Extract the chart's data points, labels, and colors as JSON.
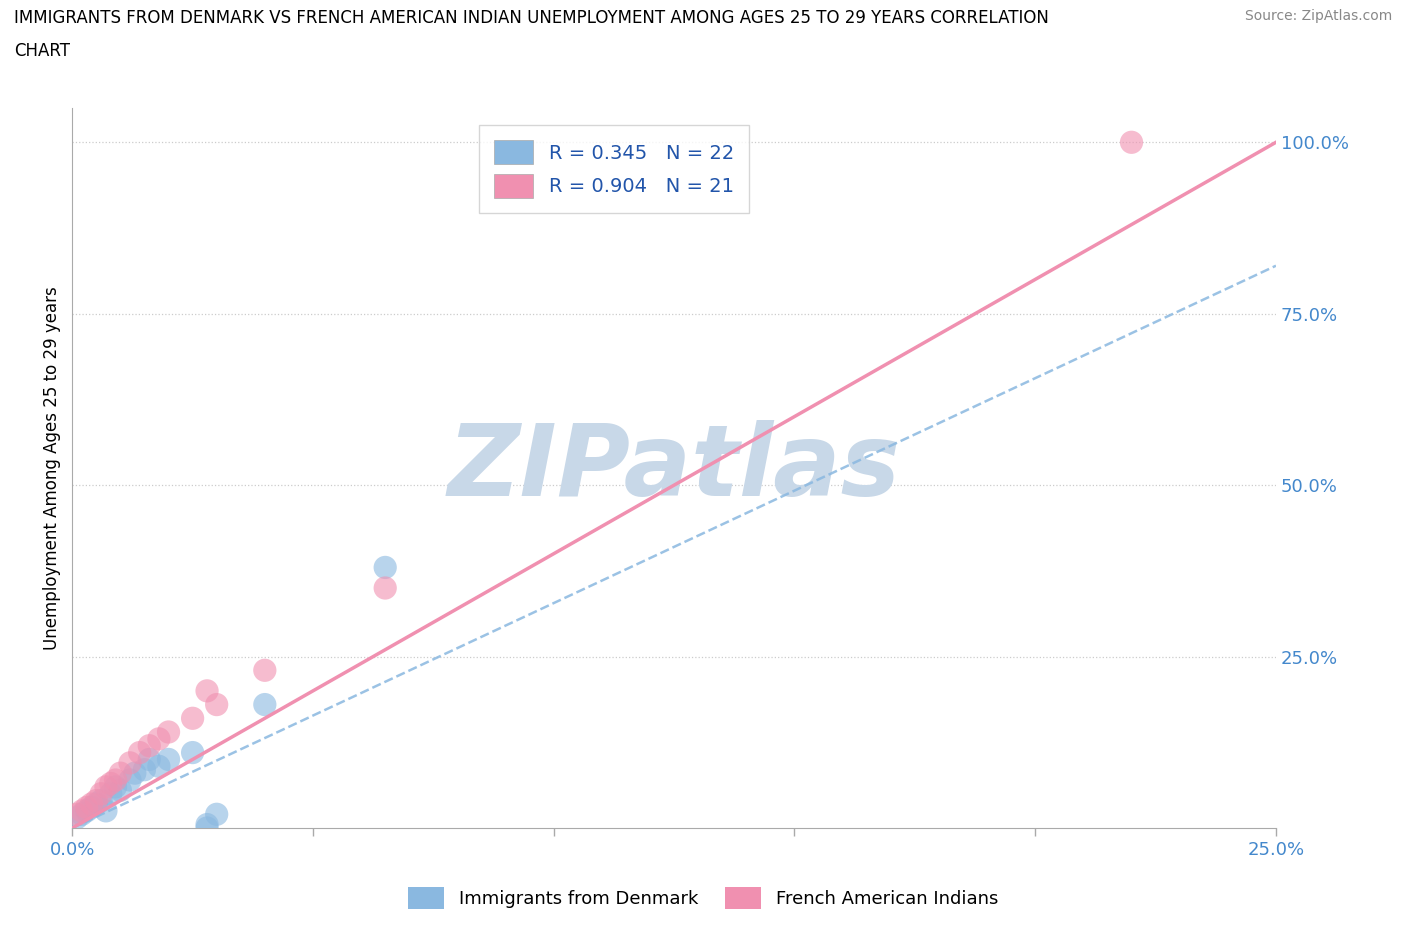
{
  "title_line1": "IMMIGRANTS FROM DENMARK VS FRENCH AMERICAN INDIAN UNEMPLOYMENT AMONG AGES 25 TO 29 YEARS CORRELATION",
  "title_line2": "CHART",
  "source": "Source: ZipAtlas.com",
  "ylabel": "Unemployment Among Ages 25 to 29 years",
  "xlim": [
    0.0,
    0.25
  ],
  "ylim": [
    0.0,
    1.05
  ],
  "grid_color": "#cccccc",
  "watermark": "ZIPatlas",
  "watermark_color": "#c8d8e8",
  "blue_color": "#8ab8e0",
  "pink_color": "#f090b0",
  "blue_R": 0.345,
  "blue_N": 22,
  "pink_R": 0.904,
  "pink_N": 21,
  "legend_label_blue": "Immigrants from Denmark",
  "legend_label_pink": "French American Indians",
  "blue_line_x": [
    0.0,
    0.25
  ],
  "blue_line_y": [
    0.0,
    0.82
  ],
  "pink_line_x": [
    0.0,
    0.25
  ],
  "pink_line_y": [
    0.0,
    1.0
  ],
  "blue_scatter_x": [
    0.001,
    0.002,
    0.003,
    0.004,
    0.005,
    0.006,
    0.007,
    0.008,
    0.009,
    0.01,
    0.012,
    0.013,
    0.015,
    0.016,
    0.018,
    0.02,
    0.025,
    0.03,
    0.04,
    0.065,
    0.028,
    0.028
  ],
  "blue_scatter_y": [
    0.015,
    0.02,
    0.025,
    0.03,
    0.035,
    0.04,
    0.025,
    0.05,
    0.06,
    0.055,
    0.07,
    0.08,
    0.085,
    0.1,
    0.09,
    0.1,
    0.11,
    0.02,
    0.18,
    0.38,
    0.0,
    0.005
  ],
  "pink_scatter_x": [
    0.001,
    0.002,
    0.003,
    0.004,
    0.005,
    0.006,
    0.007,
    0.008,
    0.009,
    0.01,
    0.012,
    0.014,
    0.016,
    0.018,
    0.02,
    0.025,
    0.03,
    0.028,
    0.04,
    0.065,
    0.22
  ],
  "pink_scatter_y": [
    0.02,
    0.025,
    0.03,
    0.035,
    0.04,
    0.05,
    0.06,
    0.065,
    0.07,
    0.08,
    0.095,
    0.11,
    0.12,
    0.13,
    0.14,
    0.16,
    0.18,
    0.2,
    0.23,
    0.35,
    1.0
  ]
}
